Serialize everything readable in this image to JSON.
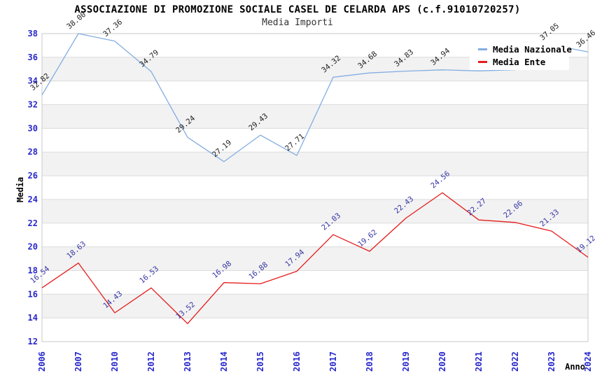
{
  "header": {
    "title": "ASSOCIAZIONE DI PROMOZIONE SOCIALE CASEL DE CELARDA APS (c.f.91010720257)",
    "subtitle": "Media Importi"
  },
  "chart_data": {
    "type": "line",
    "title": "ASSOCIAZIONE DI PROMOZIONE SOCIALE CASEL DE CELARDA APS (c.f.91010720257)",
    "subtitle": "Media Importi",
    "xlabel": "Anno",
    "ylabel": "Media",
    "categories": [
      "2006",
      "2007",
      "2010",
      "2012",
      "2013",
      "2014",
      "2015",
      "2016",
      "2017",
      "2018",
      "2019",
      "2020",
      "2021",
      "2022",
      "2023",
      "2024"
    ],
    "series": [
      {
        "name": "Media Nazionale",
        "color": "#84ade2",
        "label_color": "#1c1c1c",
        "values": [
          32.82,
          38.0,
          37.36,
          34.79,
          29.24,
          27.19,
          29.43,
          27.71,
          34.32,
          34.68,
          34.83,
          34.94,
          34.85,
          34.95,
          37.05,
          36.46
        ],
        "labels": [
          "32.82",
          "38.00",
          "37.36",
          "34.79",
          "29.24",
          "27.19",
          "29.43",
          "27.71",
          "34.32",
          "34.68",
          "34.83",
          "34.94",
          "",
          "",
          "37.05",
          "36.46"
        ]
      },
      {
        "name": "Media Ente",
        "color": "#e61b1b",
        "label_color": "#3434a6",
        "values": [
          16.54,
          18.63,
          14.43,
          16.53,
          13.52,
          16.98,
          16.88,
          17.94,
          21.03,
          19.62,
          22.43,
          24.56,
          22.27,
          22.06,
          21.33,
          19.12
        ],
        "labels": [
          "16.54",
          "18.63",
          "14.43",
          "16.53",
          "13.52",
          "16.98",
          "16.88",
          "17.94",
          "21.03",
          "19.62",
          "22.43",
          "24.56",
          "22.27",
          "22.06",
          "21.33",
          "19.12"
        ]
      }
    ],
    "ylim": [
      12,
      38
    ],
    "ytick_step": 2,
    "grid": "horizontal-bands",
    "legend_position": "top-right",
    "colors": {
      "band": "#f2f2f2",
      "gridline": "#dcdcdc",
      "border": "#c9c9c9",
      "tick_label": "#2727cb"
    }
  }
}
